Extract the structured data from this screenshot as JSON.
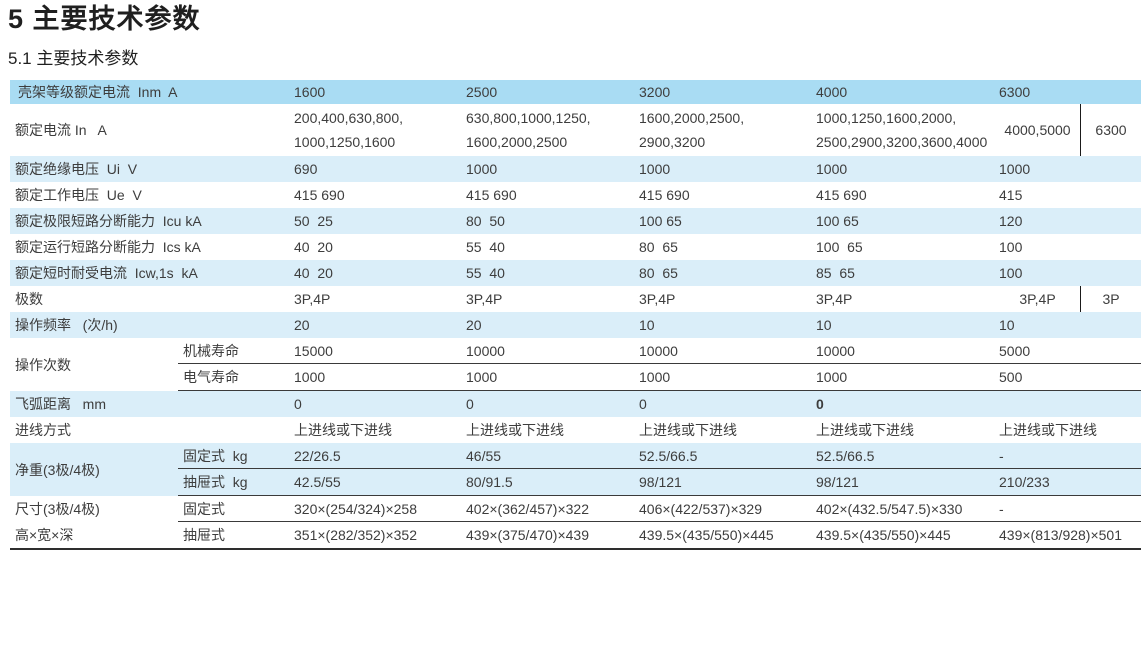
{
  "title": "5 主要技术参数",
  "subtitle": "5.1 主要技术参数",
  "colors": {
    "header_bg": "#a9dcf3",
    "stripe_bg": "#daeef9",
    "text": "#3d3d3d",
    "line": "#3a3a3a",
    "divider": "#1a1a1a",
    "border": "#2e2e2e"
  },
  "columns": [
    "1600",
    "2500",
    "3200",
    "4000",
    "6300"
  ],
  "frame_row": {
    "label": "壳架等级额定电流  Inm  A"
  },
  "rated_current_row": {
    "label": "额定电流 In   A",
    "c1a": "200,400,630,800,",
    "c1b": "1000,1250,1600",
    "c2a": "630,800,1000,1250,",
    "c2b": "1600,2000,2500",
    "c3a": "1600,2000,2500,",
    "c3b": "2900,3200",
    "c4a": "1000,1250,1600,2000,",
    "c4b": "2500,2900,3200,3600,4000",
    "c5_left": "4000,5000",
    "c5_right": "6300"
  },
  "rows": {
    "ui": {
      "label": "额定绝缘电压  Ui  V",
      "c1": "690",
      "c2": "1000",
      "c3": "1000",
      "c4": "1000",
      "c5": "1000"
    },
    "ue": {
      "label": "额定工作电压  Ue  V",
      "c1": "415 690",
      "c2": "415 690",
      "c3": "415 690",
      "c4": "415 690",
      "c5": "415"
    },
    "icu": {
      "label": "额定极限短路分断能力  Icu kA",
      "c1": "50  25",
      "c2": "80  50",
      "c3": "100 65",
      "c4": "100 65",
      "c5": "120"
    },
    "ics": {
      "label": "额定运行短路分断能力  Ics kA",
      "c1": "40  20",
      "c2": "55  40",
      "c3": "80  65",
      "c4": "100  65",
      "c5": "100"
    },
    "icw": {
      "label": "额定短时耐受电流  Icw,1s  kA",
      "c1": "40  20",
      "c2": "55  40",
      "c3": "80  65",
      "c4": "85  65",
      "c5": "100"
    },
    "poles": {
      "label": "极数",
      "c1": "3P,4P",
      "c2": "3P,4P",
      "c3": "3P,4P",
      "c4": "3P,4P",
      "c5_left": "3P,4P",
      "c5_right": "3P"
    },
    "freq": {
      "label": "操作频率   (次/h)",
      "c1": "20",
      "c2": "20",
      "c3": "10",
      "c4": "10",
      "c5": "10"
    },
    "arc": {
      "label": "飞弧距离   mm",
      "c1": "0",
      "c2": "0",
      "c3": "0",
      "c4": "0",
      "c5": ""
    },
    "wiring": {
      "label": "进线方式",
      "c1": "上进线或下进线",
      "c2": "上进线或下进线",
      "c3": "上进线或下进线",
      "c4": "上进线或下进线",
      "c5": "上进线或下进线"
    }
  },
  "op_cycles": {
    "label": "操作次数",
    "mech": {
      "sublabel": "机械寿命",
      "c1": "15000",
      "c2": "10000",
      "c3": "10000",
      "c4": "10000",
      "c5": "5000"
    },
    "elec": {
      "sublabel": "电气寿命",
      "c1": "1000",
      "c2": "1000",
      "c3": "1000",
      "c4": "1000",
      "c5": "500"
    }
  },
  "weight": {
    "label": "净重(3极/4极)",
    "fixed": {
      "sublabel": "固定式  kg",
      "c1": "22/26.5",
      "c2": "46/55",
      "c3": "52.5/66.5",
      "c4": "52.5/66.5",
      "c5": "-"
    },
    "drawer": {
      "sublabel": "抽屉式  kg",
      "c1": "42.5/55",
      "c2": "80/91.5",
      "c3": "98/121",
      "c4": "98/121",
      "c5": "210/233"
    }
  },
  "dimensions": {
    "label_line1": "尺寸(3极/4极)",
    "label_line2": "高×宽×深",
    "fixed": {
      "sublabel": "固定式",
      "c1": "320×(254/324)×258",
      "c2": "402×(362/457)×322",
      "c3": "406×(422/537)×329",
      "c4": "402×(432.5/547.5)×330",
      "c5": "-"
    },
    "drawer": {
      "sublabel": "抽屉式",
      "c1": "351×(282/352)×352",
      "c2": "439×(375/470)×439",
      "c3": "439.5×(435/550)×445",
      "c4": "439.5×(435/550)×445",
      "c5": "439×(813/928)×501"
    }
  }
}
